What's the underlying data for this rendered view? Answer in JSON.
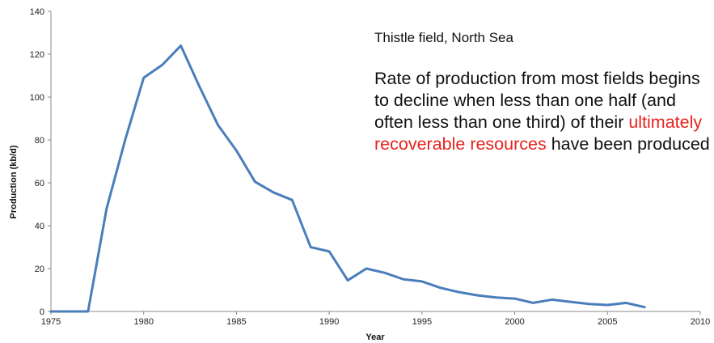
{
  "chart_data": {
    "type": "line",
    "title": "Thistle field, North Sea",
    "xlabel": "Year",
    "ylabel": "Production (kb/d)",
    "xlim": [
      1975,
      2010
    ],
    "ylim": [
      0,
      140
    ],
    "xticks": [
      1975,
      1980,
      1985,
      1990,
      1995,
      2000,
      2005,
      2010
    ],
    "yticks": [
      0,
      20,
      40,
      60,
      80,
      100,
      120,
      140
    ],
    "grid": false,
    "series": [
      {
        "color": "#4a7ebb",
        "x": [
          1975,
          1976,
          1977,
          1978,
          1979,
          1980,
          1981,
          1982,
          1983,
          1984,
          1985,
          1986,
          1987,
          1988,
          1989,
          1990,
          1991,
          1992,
          1993,
          1994,
          1995,
          1996,
          1997,
          1998,
          1999,
          2000,
          2001,
          2002,
          2003,
          2004,
          2005,
          2006,
          2007
        ],
        "values": [
          0,
          0,
          0,
          48,
          80,
          109,
          115,
          124,
          105,
          87,
          75,
          60.5,
          55.5,
          52,
          30,
          28,
          14.5,
          20,
          18,
          15,
          14,
          11,
          9,
          7.5,
          6.5,
          6,
          4,
          5.5,
          4.5,
          3.5,
          3,
          4,
          2
        ]
      }
    ],
    "annotation": {
      "part1": "Rate of production from most fields begins to decline when less than one half (and often less than one third) of their ",
      "highlight": "ultimately recoverable resources",
      "part2": " have been produced",
      "highlight_color": "#e8241e"
    }
  }
}
